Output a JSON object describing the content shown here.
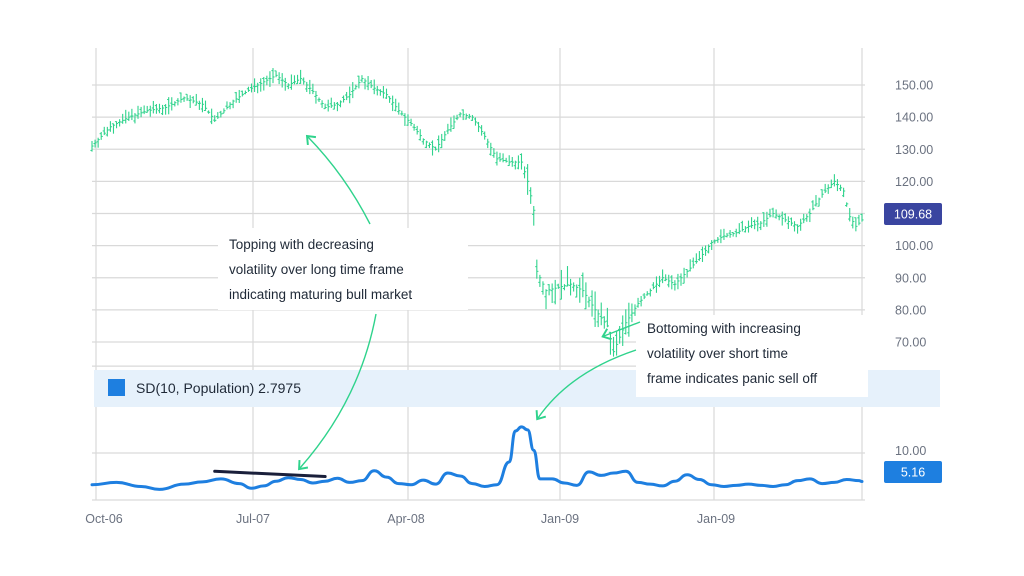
{
  "chart_data": [
    {
      "type": "ohlc",
      "name": "price-panel",
      "ylim": [
        60,
        160
      ],
      "y_ticks": [
        "150.00",
        "140.00",
        "130.00",
        "120.00",
        "110.00",
        "100.00",
        "90.00",
        "80.00",
        "70.00"
      ],
      "last_value_label": "109.68",
      "colors": {
        "bars": "#2fd38c",
        "grid": "#d9d9d9",
        "badge": "#3a45a0"
      },
      "close_path": [
        [
          0,
          131
        ],
        [
          6,
          137
        ],
        [
          12,
          140
        ],
        [
          18,
          142
        ],
        [
          24,
          143
        ],
        [
          30,
          146
        ],
        [
          36,
          144
        ],
        [
          40,
          139
        ],
        [
          46,
          145
        ],
        [
          52,
          149
        ],
        [
          56,
          151
        ],
        [
          60,
          153
        ],
        [
          64,
          150
        ],
        [
          68,
          152
        ],
        [
          72,
          148
        ],
        [
          76,
          143
        ],
        [
          80,
          144
        ],
        [
          84,
          147
        ],
        [
          88,
          152
        ],
        [
          92,
          149
        ],
        [
          96,
          147
        ],
        [
          100,
          142
        ],
        [
          104,
          138
        ],
        [
          108,
          133
        ],
        [
          112,
          130
        ],
        [
          116,
          136
        ],
        [
          120,
          141
        ],
        [
          124,
          140
        ],
        [
          128,
          134
        ],
        [
          132,
          127
        ],
        [
          136,
          126
        ],
        [
          140,
          126
        ],
        [
          142,
          120
        ],
        [
          144,
          111
        ],
        [
          145,
          92
        ],
        [
          148,
          86
        ],
        [
          152,
          87
        ],
        [
          156,
          88
        ],
        [
          160,
          86
        ],
        [
          164,
          80
        ],
        [
          168,
          75
        ],
        [
          170,
          67
        ],
        [
          174,
          76
        ],
        [
          178,
          82
        ],
        [
          182,
          86
        ],
        [
          186,
          90
        ],
        [
          190,
          88
        ],
        [
          194,
          92
        ],
        [
          198,
          96
        ],
        [
          202,
          101
        ],
        [
          206,
          103
        ],
        [
          210,
          104
        ],
        [
          214,
          106
        ],
        [
          218,
          107
        ],
        [
          222,
          110
        ],
        [
          226,
          108
        ],
        [
          230,
          106
        ],
        [
          234,
          110
        ],
        [
          238,
          116
        ],
        [
          242,
          120
        ],
        [
          245,
          117
        ],
        [
          247,
          109
        ],
        [
          249,
          106
        ],
        [
          251,
          108
        ]
      ],
      "annotations": [
        {
          "lines": [
            "Topping with decreasing",
            "volatility over long time frame",
            "indicating maturing bull market"
          ]
        },
        {
          "lines": [
            "Bottoming with increasing",
            "volatility over short time",
            "frame indicates panic sell off"
          ]
        }
      ]
    },
    {
      "type": "line",
      "name": "sd-panel",
      "legend": "SD(10, Population) 2.7975",
      "y_ticks": [
        "10.00"
      ],
      "last_value_label": "5.16",
      "ylim": [
        2,
        16
      ],
      "colors": {
        "line": "#1e7fe0",
        "legend_swatch": "#1e7fe0",
        "legend_band": "#e6f1fb",
        "trend": "#1a1f3a",
        "badge": "#1e7fe0"
      },
      "x_labels": [
        "Oct-06",
        "Jul-07",
        "Apr-08",
        "Jan-09",
        "Jan-09"
      ],
      "values": [
        [
          0,
          4.6
        ],
        [
          8,
          5.0
        ],
        [
          16,
          4.3
        ],
        [
          22,
          3.8
        ],
        [
          30,
          4.7
        ],
        [
          36,
          5.1
        ],
        [
          42,
          5.6
        ],
        [
          48,
          4.8
        ],
        [
          52,
          4.0
        ],
        [
          56,
          4.4
        ],
        [
          60,
          5.2
        ],
        [
          64,
          5.8
        ],
        [
          68,
          5.5
        ],
        [
          72,
          4.9
        ],
        [
          76,
          5.2
        ],
        [
          80,
          5.7
        ],
        [
          84,
          5.0
        ],
        [
          88,
          5.3
        ],
        [
          92,
          7.0
        ],
        [
          96,
          5.9
        ],
        [
          100,
          4.8
        ],
        [
          104,
          4.6
        ],
        [
          108,
          5.4
        ],
        [
          112,
          4.7
        ],
        [
          116,
          6.6
        ],
        [
          120,
          6.1
        ],
        [
          124,
          4.8
        ],
        [
          128,
          4.3
        ],
        [
          132,
          4.6
        ],
        [
          136,
          8.5
        ],
        [
          138,
          13.8
        ],
        [
          140,
          14.5
        ],
        [
          142,
          14.0
        ],
        [
          144,
          10.5
        ],
        [
          146,
          5.6
        ],
        [
          150,
          5.6
        ],
        [
          154,
          4.9
        ],
        [
          158,
          4.5
        ],
        [
          162,
          6.8
        ],
        [
          166,
          6.2
        ],
        [
          170,
          6.6
        ],
        [
          174,
          6.9
        ],
        [
          178,
          5.0
        ],
        [
          182,
          4.7
        ],
        [
          186,
          4.4
        ],
        [
          190,
          5.2
        ],
        [
          194,
          6.3
        ],
        [
          198,
          5.5
        ],
        [
          202,
          4.6
        ],
        [
          206,
          4.3
        ],
        [
          210,
          4.5
        ],
        [
          214,
          4.7
        ],
        [
          218,
          4.5
        ],
        [
          222,
          4.3
        ],
        [
          226,
          4.6
        ],
        [
          230,
          5.3
        ],
        [
          234,
          5.6
        ],
        [
          238,
          4.8
        ],
        [
          242,
          5.0
        ],
        [
          246,
          5.5
        ],
        [
          250,
          5.3
        ],
        [
          251,
          5.16
        ]
      ],
      "trend_line": [
        [
          40,
          6.9
        ],
        [
          76,
          6.0
        ]
      ]
    }
  ]
}
